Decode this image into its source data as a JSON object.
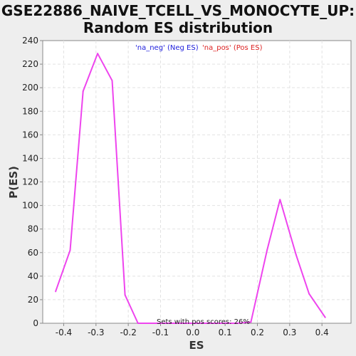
{
  "chart_data": {
    "type": "line",
    "title": "GSE22886_NAIVE_TCELL_VS_MONOCYTE_UP:",
    "subtitle": "Random ES distribution",
    "xlabel": "ES",
    "ylabel": "P(ES)",
    "xlim": [
      -0.465,
      0.49
    ],
    "ylim": [
      0,
      240
    ],
    "x_ticks": [
      "-0.4",
      "-0.3",
      "-0.2",
      "-0.1",
      "0.0",
      "0.1",
      "0.2",
      "0.3",
      "0.4"
    ],
    "y_ticks": [
      "0",
      "20",
      "40",
      "60",
      "80",
      "100",
      "120",
      "140",
      "160",
      "180",
      "200",
      "220",
      "240"
    ],
    "grid": true,
    "legend": [
      {
        "label": "'na_neg' (Neg ES)",
        "color": "#2222dd"
      },
      {
        "label": "'na_pos' (Pos ES)",
        "color": "#dd2222"
      }
    ],
    "annotation": "Sets with pos scores: 26%",
    "series": [
      {
        "color": "#ee44ee",
        "points": [
          [
            -0.425,
            27
          ],
          [
            -0.38,
            62
          ],
          [
            -0.34,
            197
          ],
          [
            -0.295,
            229
          ],
          [
            -0.25,
            206
          ],
          [
            -0.21,
            24
          ],
          [
            -0.17,
            0
          ],
          [
            -0.12,
            0
          ],
          [
            0.0,
            0
          ],
          [
            0.14,
            0
          ],
          [
            0.18,
            1
          ],
          [
            0.23,
            62
          ],
          [
            0.27,
            105
          ],
          [
            0.32,
            58
          ],
          [
            0.36,
            25
          ],
          [
            0.41,
            5
          ]
        ]
      }
    ]
  }
}
